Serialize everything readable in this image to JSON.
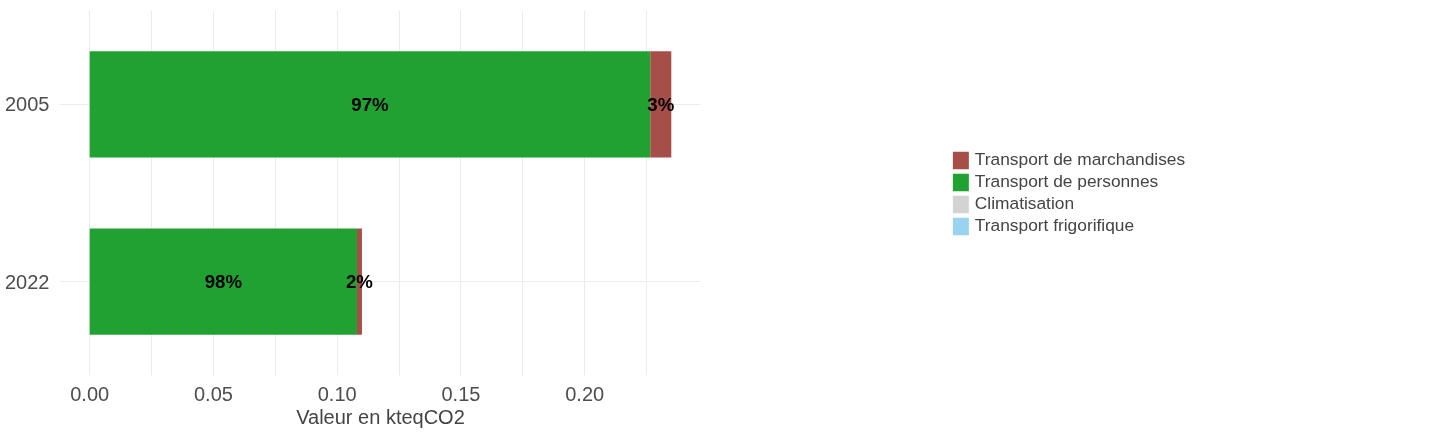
{
  "chart_data": {
    "type": "bar",
    "orientation": "horizontal",
    "stacked": true,
    "xlabel": "Valeur en kteqCO2",
    "categories": [
      "2005",
      "2022"
    ],
    "series": [
      {
        "name": "Transport frigorifique",
        "color": "#98d3f0",
        "values": [
          0,
          0
        ]
      },
      {
        "name": "Climatisation",
        "color": "#d3d3d3",
        "values": [
          0,
          0
        ]
      },
      {
        "name": "Transport de personnes",
        "color": "#21a132",
        "values": [
          0.2265,
          0.108
        ]
      },
      {
        "name": "Transport de marchandises",
        "color": "#a64e48",
        "values": [
          0.0085,
          0.002
        ]
      }
    ],
    "annotations": [
      "97%",
      "3%",
      "98%",
      "2%"
    ],
    "xlim": [
      -0.0118,
      0.2468
    ],
    "xticks": [
      {
        "value": 0,
        "label": "0.00"
      },
      {
        "value": 0.05,
        "label": "0.05"
      },
      {
        "value": 0.1,
        "label": "0.10"
      },
      {
        "value": 0.15,
        "label": "0.15"
      },
      {
        "value": 0.2,
        "label": "0.20"
      }
    ],
    "grid": true,
    "legend": "right"
  }
}
